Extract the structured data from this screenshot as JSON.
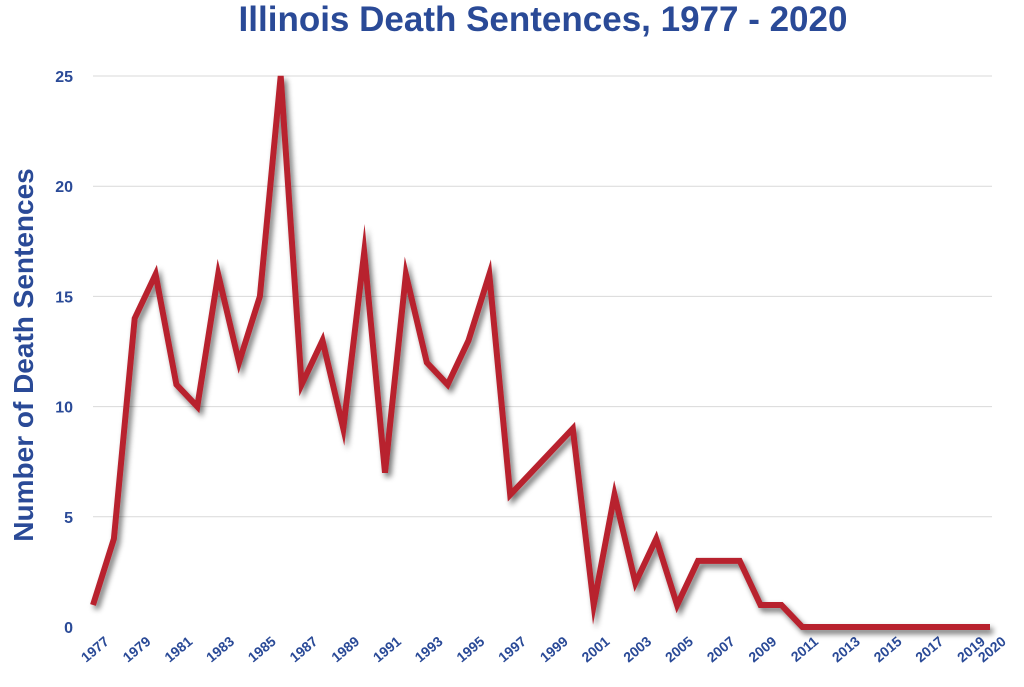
{
  "chart_data": {
    "type": "line",
    "title": "Illinois Death Sentences, 1977 - 2020",
    "xlabel": "",
    "ylabel": "Number of Death Sentences",
    "ylim": [
      0,
      25
    ],
    "yticks": [
      0,
      5,
      10,
      15,
      20,
      25
    ],
    "xlim": [
      1977,
      2020
    ],
    "xticks": [
      "1977",
      "1979",
      "1981",
      "1983",
      "1985",
      "1987",
      "1989",
      "1991",
      "1993",
      "1995",
      "1997",
      "1999",
      "2001",
      "2003",
      "2005",
      "2007",
      "2009",
      "2011",
      "2013",
      "2015",
      "2017",
      "2019",
      "2020"
    ],
    "grid": true,
    "series": [
      {
        "x": [
          1977,
          1978,
          1979,
          1980,
          1981,
          1982,
          1983,
          1984,
          1985,
          1986,
          1987,
          1988,
          1989,
          1990,
          1991,
          1992,
          1993,
          1994,
          1995,
          1996,
          1997,
          1998,
          1999,
          2000,
          2001,
          2002,
          2003,
          2004,
          2005,
          2006,
          2007,
          2008,
          2009,
          2010,
          2011,
          2012,
          2013,
          2014,
          2015,
          2016,
          2017,
          2018,
          2019,
          2020
        ],
        "values": [
          1,
          4,
          14,
          16,
          11,
          10,
          16,
          12,
          15,
          25,
          11,
          13,
          9,
          17,
          7,
          16,
          12,
          11,
          13,
          16,
          6,
          7,
          8,
          9,
          1,
          6,
          2,
          4,
          1,
          3,
          3,
          3,
          1,
          1,
          0,
          0,
          0,
          0,
          0,
          0,
          0,
          0,
          0,
          0
        ]
      }
    ],
    "colors": {
      "line": "#b8232f",
      "grid": "#d9d9d9",
      "text": "#2a4a97"
    }
  }
}
